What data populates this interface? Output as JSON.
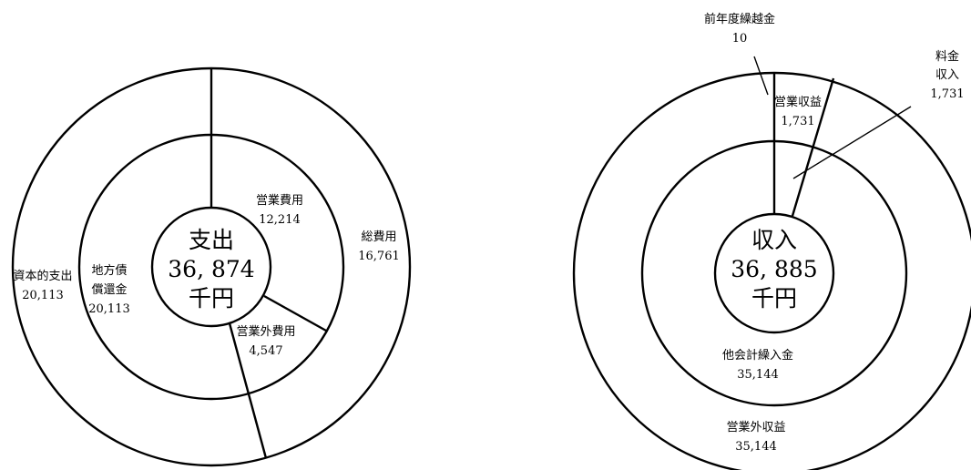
{
  "chart_data": [
    {
      "type": "pie",
      "center": {
        "line1": "支出",
        "line2": "36, 874",
        "line3": "千円"
      },
      "outer_ring": [
        {
          "label": "総費用",
          "value": 16761,
          "value_text": "16,761"
        },
        {
          "label": "資本的支出",
          "value": 20113,
          "value_text": "20,113"
        }
      ],
      "inner_ring": [
        {
          "label": "営業費用",
          "value": 12214,
          "value_text": "12,214"
        },
        {
          "label": "営業外費用",
          "value": 4547,
          "value_text": "4,547"
        },
        {
          "label_line1": "地方債",
          "label_line2": "償還金",
          "value": 20113,
          "value_text": "20,113"
        }
      ]
    },
    {
      "type": "pie",
      "center": {
        "line1": "収入",
        "line2": "36, 885",
        "line3": "千円"
      },
      "outer_ring": [
        {
          "label": "前年度繰越金",
          "value": 10,
          "value_text": "10"
        },
        {
          "label": "営業収益",
          "value": 1731,
          "value_text": "1,731"
        },
        {
          "label": "営業外収益",
          "value": 35144,
          "value_text": "35,144"
        }
      ],
      "inner_ring": [
        {
          "label_line1": "料金",
          "label_line2": "収入",
          "value": 1731,
          "value_text": "1,731"
        },
        {
          "label": "他会計繰入金",
          "value": 35144,
          "value_text": "35,144"
        }
      ]
    }
  ]
}
